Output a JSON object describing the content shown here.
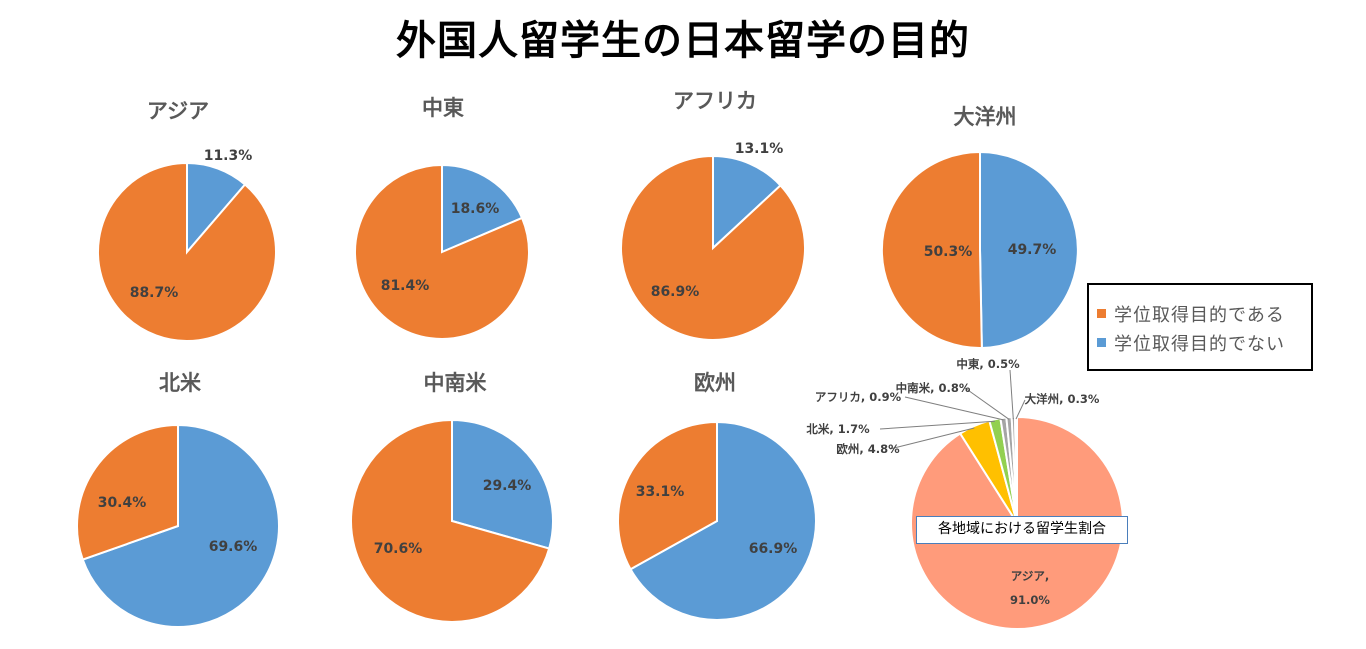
{
  "title": "外国人留学生の日本留学の目的",
  "colors": {
    "degree": "#ed7d31",
    "non_degree": "#5b9bd5",
    "asia_share": "#ff9b7b",
    "europe_share": "#ffc000",
    "na_share": "#92d050",
    "other_share": "#a5a5a5",
    "leader": "#7f7f7f"
  },
  "legend": {
    "degree": "学位取得目的である",
    "non_degree": "学位取得目的でない"
  },
  "chart_data": [
    {
      "type": "pie",
      "title": "アジア",
      "labels": [
        "学位取得目的でない",
        "学位取得目的である"
      ],
      "values": [
        11.3,
        88.7
      ],
      "display": [
        "11.3%",
        "88.7%"
      ]
    },
    {
      "type": "pie",
      "title": "中東",
      "labels": [
        "学位取得目的でない",
        "学位取得目的である"
      ],
      "values": [
        18.6,
        81.4
      ],
      "display": [
        "18.6%",
        "81.4%"
      ]
    },
    {
      "type": "pie",
      "title": "アフリカ",
      "labels": [
        "学位取得目的でない",
        "学位取得目的である"
      ],
      "values": [
        13.1,
        86.9
      ],
      "display": [
        "13.1%",
        "86.9%"
      ]
    },
    {
      "type": "pie",
      "title": "大洋州",
      "labels": [
        "学位取得目的でない",
        "学位取得目的である"
      ],
      "values": [
        49.7,
        50.3
      ],
      "display": [
        "49.7%",
        "50.3%"
      ]
    },
    {
      "type": "pie",
      "title": "北米",
      "labels": [
        "学位取得目的でない",
        "学位取得目的である"
      ],
      "values": [
        69.6,
        30.4
      ],
      "display": [
        "69.6%",
        "30.4%"
      ]
    },
    {
      "type": "pie",
      "title": "中南米",
      "labels": [
        "学位取得目的でない",
        "学位取得目的である"
      ],
      "values": [
        29.4,
        70.6
      ],
      "display": [
        "29.4%",
        "70.6%"
      ]
    },
    {
      "type": "pie",
      "title": "欧州",
      "labels": [
        "学位取得目的でない",
        "学位取得目的である"
      ],
      "values": [
        66.9,
        33.1
      ],
      "display": [
        "66.9%",
        "33.1%"
      ]
    },
    {
      "type": "pie",
      "title": "各地域における留学生割合",
      "labels": [
        "アジア",
        "欧州",
        "北米",
        "アフリカ",
        "中南米",
        "中東",
        "大洋州"
      ],
      "values": [
        91.0,
        4.8,
        1.7,
        0.9,
        0.8,
        0.5,
        0.3
      ],
      "display": [
        "アジア,",
        "91.0%",
        "欧州, 4.8%",
        "北米, 1.7%",
        "アフリカ, 0.9%",
        "中南米, 0.8%",
        "中東, 0.5%",
        "大洋州, 0.3%"
      ]
    }
  ]
}
